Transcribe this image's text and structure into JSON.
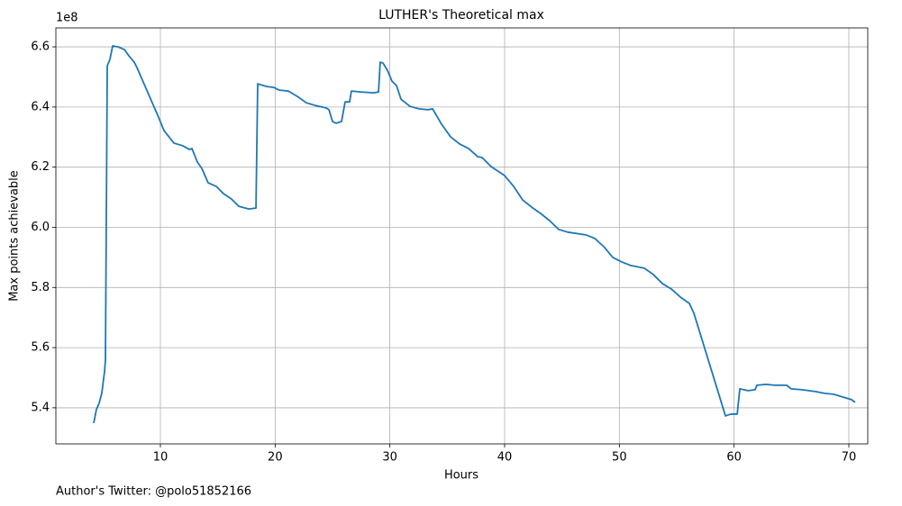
{
  "chart_data": {
    "type": "line",
    "title": "LUTHER's Theoretical max",
    "x_label": "Hours",
    "y_label": "Max points achievable",
    "y_offset_label": "1e8",
    "footnote": "Author's Twitter: @polo51852166",
    "grid": true,
    "xlim": [
      0.89,
      71.65
    ],
    "ylim": [
      5.28,
      6.663
    ],
    "xticks": [
      10,
      20,
      30,
      40,
      50,
      60,
      70
    ],
    "yticks": [
      5.4,
      5.6,
      5.8,
      {
        "value": 6,
        "label": "6.0"
      },
      6.2,
      6.4,
      6.6
    ],
    "x": [
      4.19,
      4.42,
      4.66,
      4.89,
      5.13,
      5.21,
      5.37,
      5.6,
      5.84,
      6.31,
      6.86,
      7.26,
      7.72,
      7.96,
      9.76,
      10.31,
      11.18,
      11.96,
      12.51,
      12.75,
      13.22,
      13.61,
      14.16,
      14.87,
      15.5,
      16.2,
      16.83,
      17.7,
      18.33,
      18.48,
      19.27,
      19.9,
      20.37,
      21.15,
      21.94,
      22.72,
      23.51,
      24.45,
      24.69,
      25.0,
      25.32,
      25.79,
      26.1,
      26.49,
      26.65,
      27.44,
      28.61,
      29.01,
      29.16,
      29.4,
      29.79,
      30.18,
      30.58,
      30.97,
      31.76,
      32.54,
      33.33,
      33.72,
      34.5,
      35.29,
      36.08,
      36.86,
      37.65,
      38.04,
      38.82,
      40.0,
      40.79,
      41.57,
      42.36,
      43.14,
      43.93,
      44.71,
      45.5,
      47.07,
      47.86,
      48.64,
      49.43,
      50.21,
      51.0,
      52.18,
      52.96,
      53.75,
      54.53,
      55.32,
      56.1,
      56.5,
      59.25,
      59.72,
      60.27,
      60.5,
      61.21,
      61.83,
      61.99,
      62.78,
      63.56,
      64.58,
      64.98,
      65.92,
      67.1,
      67.88,
      68.67,
      69.45,
      70.24,
      70.55
    ],
    "series": [
      {
        "color": "#1f77b4",
        "values": [
          5.349,
          5.394,
          5.415,
          5.448,
          5.52,
          5.559,
          6.537,
          6.558,
          6.603,
          6.6,
          6.591,
          6.57,
          6.549,
          6.531,
          6.373,
          6.322,
          6.28,
          6.271,
          6.259,
          6.262,
          6.217,
          6.196,
          6.148,
          6.136,
          6.112,
          6.094,
          6.07,
          6.061,
          6.064,
          6.477,
          6.468,
          6.465,
          6.456,
          6.453,
          6.435,
          6.414,
          6.405,
          6.397,
          6.391,
          6.352,
          6.346,
          6.352,
          6.417,
          6.417,
          6.453,
          6.45,
          6.447,
          6.45,
          6.549,
          6.546,
          6.522,
          6.486,
          6.471,
          6.426,
          6.402,
          6.394,
          6.391,
          6.394,
          6.343,
          6.301,
          6.277,
          6.262,
          6.235,
          6.232,
          6.202,
          6.172,
          6.136,
          6.091,
          6.067,
          6.046,
          6.022,
          5.993,
          5.984,
          5.975,
          5.963,
          5.936,
          5.9,
          5.885,
          5.873,
          5.864,
          5.843,
          5.813,
          5.795,
          5.768,
          5.747,
          5.714,
          5.373,
          5.379,
          5.379,
          5.463,
          5.457,
          5.46,
          5.475,
          5.478,
          5.475,
          5.475,
          5.463,
          5.46,
          5.454,
          5.448,
          5.445,
          5.436,
          5.427,
          5.418
        ]
      }
    ]
  }
}
